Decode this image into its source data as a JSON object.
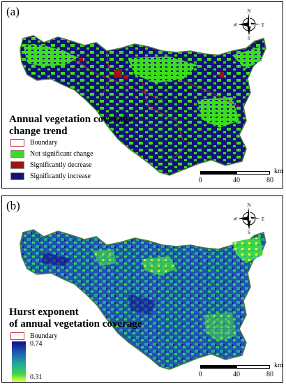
{
  "panel_a": {
    "label": "(a)",
    "legend": {
      "title_line1": "Annual vegetation coverage",
      "title_line2": "change trend",
      "items": [
        {
          "label": "Boundary",
          "color": "#ffffff",
          "border": "#c8323c"
        },
        {
          "label": "Not significant change",
          "color": "#3cdc1e"
        },
        {
          "label": "Significantly decrease",
          "color": "#a01414"
        },
        {
          "label": "Significantly increase",
          "color": "#12127a"
        }
      ]
    },
    "scale": {
      "ticks": [
        "0",
        "40",
        "80"
      ],
      "unit": "km"
    }
  },
  "panel_b": {
    "label": "(b)",
    "legend": {
      "title_line1": "Hurst exponent",
      "title_line2": "of annual vegetation coverage",
      "boundary_label": "Boundary",
      "max_label": "0.74",
      "min_label": "0.31",
      "gradient_colors": [
        "#140a8e",
        "#1d55b0",
        "#24a6a0",
        "#3fd44a",
        "#e9ff3a"
      ]
    },
    "scale": {
      "ticks": [
        "0",
        "40",
        "80"
      ],
      "unit": "km"
    }
  },
  "compass": {
    "n": "N",
    "s": "S",
    "e": "E",
    "w": "W"
  },
  "colors": {
    "boundary": "#c8323c",
    "region_outline": "#4a7a3a"
  }
}
